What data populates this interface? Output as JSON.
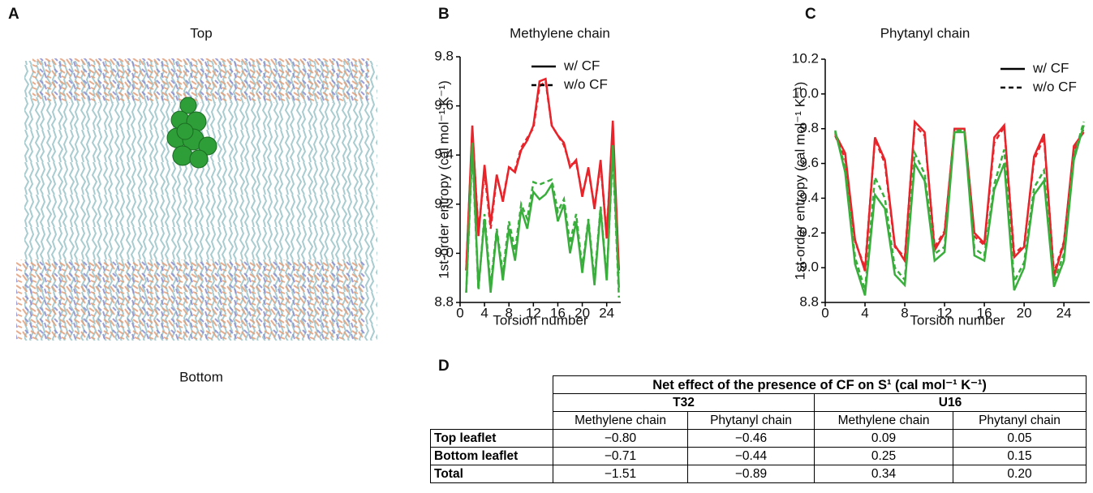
{
  "panel_a": {
    "label": "A",
    "top_label": "Top",
    "bottom_label": "Bottom"
  },
  "chart_data": [
    {
      "panel": "B",
      "type": "line",
      "title": "Methylene chain",
      "x_label": "Torsion number",
      "y_label": "1st-order entropy (cal mol⁻¹ K⁻¹)",
      "xlim": [
        0,
        26.3
      ],
      "xticks": [
        0,
        4,
        8,
        12,
        16,
        20,
        24
      ],
      "ylim": [
        8.8,
        9.8
      ],
      "yticks": [
        8.8,
        {
          "value": 9,
          "label": "9.0"
        },
        9.2,
        9.4,
        9.6,
        9.8
      ],
      "legend_position": "upper right",
      "legend": [
        {
          "name": "w/ CF",
          "dash": "solid"
        },
        {
          "name": "w/o CF",
          "dash": "dashed"
        }
      ],
      "x": [
        1,
        2,
        3,
        4,
        5,
        6,
        7,
        8,
        9,
        10,
        11,
        12,
        13,
        14,
        15,
        16,
        17,
        18,
        19,
        20,
        21,
        22,
        23,
        24,
        25,
        26
      ],
      "series": [
        {
          "color": "#e8242b",
          "dash": "solid",
          "values": [
            8.93,
            9.52,
            9.07,
            9.36,
            9.12,
            9.32,
            9.21,
            9.35,
            9.33,
            9.42,
            9.46,
            9.52,
            9.7,
            9.71,
            9.52,
            9.48,
            9.45,
            9.35,
            9.38,
            9.23,
            9.35,
            9.18,
            9.38,
            9.06,
            9.54,
            8.93
          ]
        },
        {
          "color": "#e8242b",
          "dash": "dashed",
          "values": [
            8.93,
            9.5,
            9.09,
            9.33,
            9.1,
            9.31,
            9.22,
            9.35,
            9.34,
            9.43,
            9.47,
            9.51,
            9.68,
            9.7,
            9.52,
            9.48,
            9.44,
            9.36,
            9.37,
            9.24,
            9.34,
            9.19,
            9.36,
            9.08,
            9.51,
            8.92
          ]
        },
        {
          "color": "#3aae3c",
          "dash": "solid",
          "values": [
            8.84,
            9.45,
            8.86,
            9.14,
            8.84,
            9.09,
            8.89,
            9.1,
            8.97,
            9.18,
            9.1,
            9.25,
            9.22,
            9.24,
            9.28,
            9.13,
            9.2,
            9.0,
            9.13,
            8.92,
            9.13,
            8.87,
            9.18,
            8.89,
            9.44,
            8.86
          ]
        },
        {
          "color": "#3aae3c",
          "dash": "dashed",
          "values": [
            8.84,
            9.42,
            8.85,
            9.16,
            8.87,
            9.1,
            8.92,
            9.13,
            9.01,
            9.2,
            9.14,
            9.29,
            9.28,
            9.29,
            9.3,
            9.17,
            9.22,
            9.04,
            9.16,
            8.94,
            9.14,
            8.89,
            9.19,
            8.9,
            9.41,
            8.82
          ]
        }
      ]
    },
    {
      "panel": "C",
      "type": "line",
      "title": "Phytanyl chain",
      "x_label": "Torsion number",
      "y_label": "1st-order entropy (cal mol⁻¹ K⁻¹)",
      "xlim": [
        0,
        26.6
      ],
      "xticks": [
        0,
        4,
        8,
        12,
        16,
        20,
        24
      ],
      "ylim": [
        8.8,
        10.2
      ],
      "yticks": [
        8.8,
        {
          "value": 9,
          "label": "9.0"
        },
        9.2,
        9.4,
        9.6,
        9.8,
        {
          "value": 10,
          "label": "10.0"
        },
        10.2
      ],
      "legend_position": "upper right",
      "legend": [
        {
          "name": "w/ CF",
          "dash": "solid"
        },
        {
          "name": "w/o CF",
          "dash": "dashed"
        }
      ],
      "x": [
        1,
        2,
        3,
        4,
        5,
        6,
        7,
        8,
        9,
        10,
        11,
        12,
        13,
        14,
        15,
        16,
        17,
        18,
        19,
        20,
        21,
        22,
        23,
        24,
        25,
        26
      ],
      "series": [
        {
          "color": "#e8242b",
          "dash": "solid",
          "values": [
            9.77,
            9.66,
            9.16,
            8.98,
            9.75,
            9.62,
            9.13,
            9.04,
            9.84,
            9.78,
            9.1,
            9.2,
            9.8,
            9.8,
            9.2,
            9.14,
            9.75,
            9.82,
            9.06,
            9.12,
            9.64,
            9.77,
            8.95,
            9.14,
            9.7,
            9.78
          ]
        },
        {
          "color": "#e8242b",
          "dash": "dashed",
          "values": [
            9.76,
            9.63,
            9.15,
            9.0,
            9.74,
            9.6,
            9.12,
            9.06,
            9.82,
            9.76,
            9.12,
            9.21,
            9.79,
            9.79,
            9.18,
            9.13,
            9.72,
            9.81,
            9.08,
            9.13,
            9.62,
            9.75,
            8.97,
            9.15,
            9.67,
            9.8
          ]
        },
        {
          "color": "#3aae3c",
          "dash": "solid",
          "values": [
            9.79,
            9.55,
            9.02,
            8.84,
            9.42,
            9.34,
            8.96,
            8.9,
            9.6,
            9.5,
            9.04,
            9.09,
            9.78,
            9.78,
            9.07,
            9.04,
            9.45,
            9.6,
            8.87,
            9.0,
            9.42,
            9.5,
            8.89,
            9.04,
            9.62,
            9.82
          ]
        },
        {
          "color": "#3aae3c",
          "dash": "dashed",
          "values": [
            9.78,
            9.58,
            9.06,
            8.87,
            9.52,
            9.4,
            9.0,
            8.93,
            9.66,
            9.54,
            9.08,
            9.12,
            9.79,
            9.79,
            9.11,
            9.07,
            9.48,
            9.68,
            8.92,
            9.03,
            9.46,
            9.56,
            8.92,
            9.08,
            9.64,
            9.84
          ]
        }
      ]
    }
  ],
  "table": {
    "label": "D",
    "title": "Net effect of the presence of CF on S¹ (cal mol⁻¹ K⁻¹)",
    "groups": [
      "T32",
      "U16"
    ],
    "columns": [
      "Methylene chain",
      "Phytanyl chain",
      "Methylene chain",
      "Phytanyl chain"
    ],
    "rows": [
      {
        "label": "Top leaflet",
        "values": [
          "−0.80",
          "−0.46",
          "0.09",
          "0.05"
        ]
      },
      {
        "label": "Bottom leaflet",
        "values": [
          "−0.71",
          "−0.44",
          "0.25",
          "0.15"
        ]
      },
      {
        "label": "Total",
        "values": [
          "−1.51",
          "−0.89",
          "0.34",
          "0.20"
        ]
      }
    ]
  }
}
